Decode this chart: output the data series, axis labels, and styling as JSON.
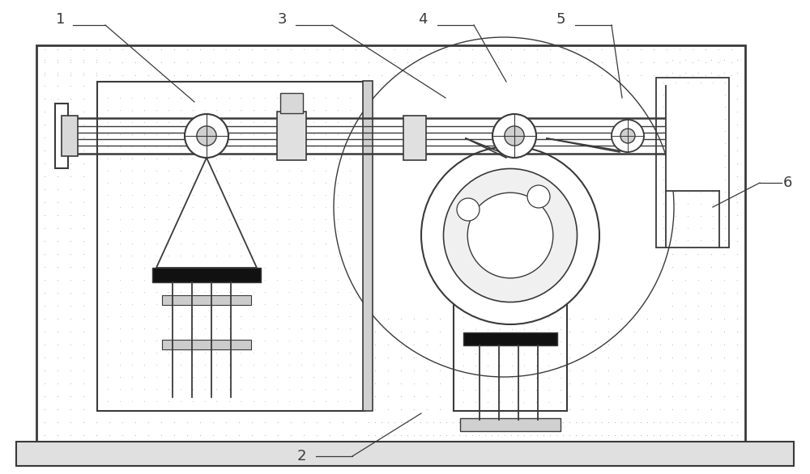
{
  "bg_color": "#ffffff",
  "line_color": "#3a3a3a",
  "dot_color": "#b0b0b0",
  "figsize": [
    10.0,
    5.86
  ],
  "dpi": 100,
  "labels": [
    "1",
    "2",
    "3",
    "4",
    "5",
    "6"
  ]
}
